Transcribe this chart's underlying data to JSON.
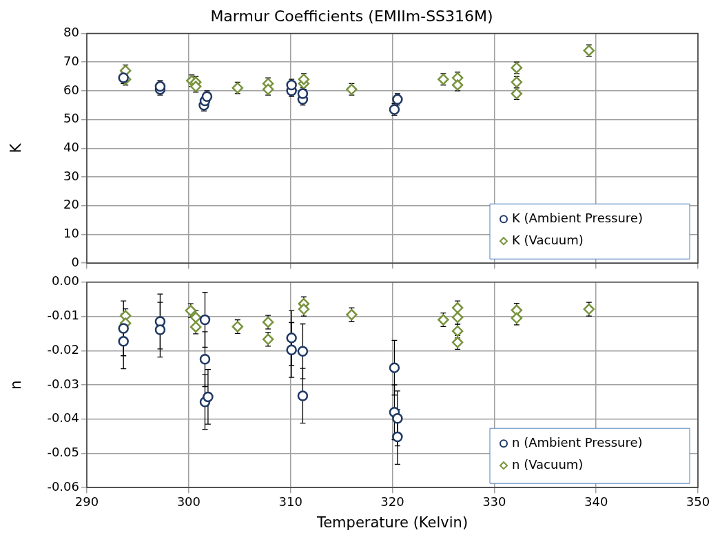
{
  "chart_data": [
    {
      "type": "scatter",
      "title": "Marmur Coefficients (EMIIm-SS316M)",
      "ylabel": "K",
      "xlim": [
        290,
        350
      ],
      "xticks": [
        290,
        300,
        310,
        320,
        330,
        340,
        350
      ],
      "ylim": [
        0,
        80
      ],
      "yticks": [
        0,
        10,
        20,
        30,
        40,
        50,
        60,
        70,
        80
      ],
      "grid": true,
      "legend": "bottom right",
      "tick_labels": "y",
      "series": [
        {
          "name": "K (Ambient Pressure)",
          "color": "#1f3864",
          "marker": "circle",
          "x": [
            293.6,
            297.2,
            297.2,
            301.5,
            301.6,
            301.8,
            310.1,
            310.1,
            311.2,
            311.2,
            320.2,
            320.5
          ],
          "values": [
            64.5,
            60.5,
            61.5,
            55,
            56.5,
            58,
            60,
            62,
            57,
            59,
            53.5,
            57
          ],
          "errors": [
            2,
            2,
            2,
            2,
            2,
            2,
            2,
            2,
            2,
            2,
            2,
            2
          ]
        },
        {
          "name": "K (Vacuum)",
          "color": "#77933c",
          "marker": "diamond",
          "x": [
            293.8,
            293.8,
            300.3,
            300.7,
            300.7,
            304.8,
            307.8,
            307.8,
            311.3,
            311.3,
            316,
            325,
            326.4,
            326.4,
            332.2,
            332.2,
            332.2,
            339.3
          ],
          "values": [
            67,
            64,
            63.5,
            63,
            61.5,
            61,
            62.5,
            60.5,
            62.5,
            64,
            60.5,
            64,
            64.5,
            62,
            68,
            63,
            59,
            74
          ],
          "errors": [
            2,
            2,
            2,
            2,
            2,
            2,
            2,
            2,
            2,
            2,
            2,
            2,
            2,
            2,
            2,
            2,
            2,
            2
          ]
        }
      ]
    },
    {
      "type": "scatter",
      "xlabel": "Temperature (Kelvin)",
      "ylabel": "n",
      "xlim": [
        290,
        350
      ],
      "xticks": [
        290,
        300,
        310,
        320,
        330,
        340,
        350
      ],
      "ylim": [
        -0.06,
        0
      ],
      "yticks": [
        {
          "value": -0.06,
          "label": "-0.06"
        },
        {
          "value": -0.05,
          "label": "-0.05"
        },
        {
          "value": -0.04,
          "label": "-0.04"
        },
        {
          "value": -0.03,
          "label": "-0.03"
        },
        {
          "value": -0.02,
          "label": "-0.02"
        },
        {
          "value": -0.01,
          "label": "-0.01"
        },
        {
          "value": 0,
          "label": "0.00"
        }
      ],
      "grid": true,
      "legend": "bottom right",
      "series": [
        {
          "name": "n (Ambient Pressure)",
          "color": "#1f3864",
          "marker": "circle",
          "x": [
            293.6,
            293.6,
            297.2,
            297.2,
            301.6,
            301.6,
            301.6,
            301.9,
            310.1,
            310.1,
            311.2,
            311.2,
            320.2,
            320.2,
            320.5,
            320.5
          ],
          "values": [
            -0.0135,
            -0.0173,
            -0.0115,
            -0.0139,
            -0.011,
            -0.0225,
            -0.035,
            -0.0335,
            -0.0163,
            -0.0198,
            -0.0202,
            -0.0332,
            -0.025,
            -0.038,
            -0.0398,
            -0.0452
          ],
          "errors": [
            0.008,
            0.008,
            0.008,
            0.008,
            0.008,
            0.008,
            0.008,
            0.008,
            0.008,
            0.008,
            0.008,
            0.008,
            0.008,
            0.008,
            0.008,
            0.008
          ]
        },
        {
          "name": "n (Vacuum)",
          "color": "#77933c",
          "marker": "diamond",
          "x": [
            293.8,
            293.8,
            300.2,
            300.7,
            300.7,
            304.8,
            307.8,
            307.8,
            311.3,
            311.3,
            316,
            325,
            326.4,
            326.4,
            326.4,
            326.4,
            332.2,
            332.2,
            339.3
          ],
          "values": [
            -0.0098,
            -0.012,
            -0.0083,
            -0.0103,
            -0.0131,
            -0.013,
            -0.0117,
            -0.0167,
            -0.0063,
            -0.0079,
            -0.0095,
            -0.011,
            -0.0075,
            -0.0103,
            -0.0143,
            -0.0176,
            -0.0082,
            -0.0105,
            -0.0079
          ],
          "errors": [
            0.002,
            0.002,
            0.002,
            0.002,
            0.002,
            0.002,
            0.002,
            0.002,
            0.002,
            0.002,
            0.002,
            0.002,
            0.002,
            0.002,
            0.002,
            0.002,
            0.002,
            0.002,
            0.002
          ]
        }
      ]
    }
  ]
}
